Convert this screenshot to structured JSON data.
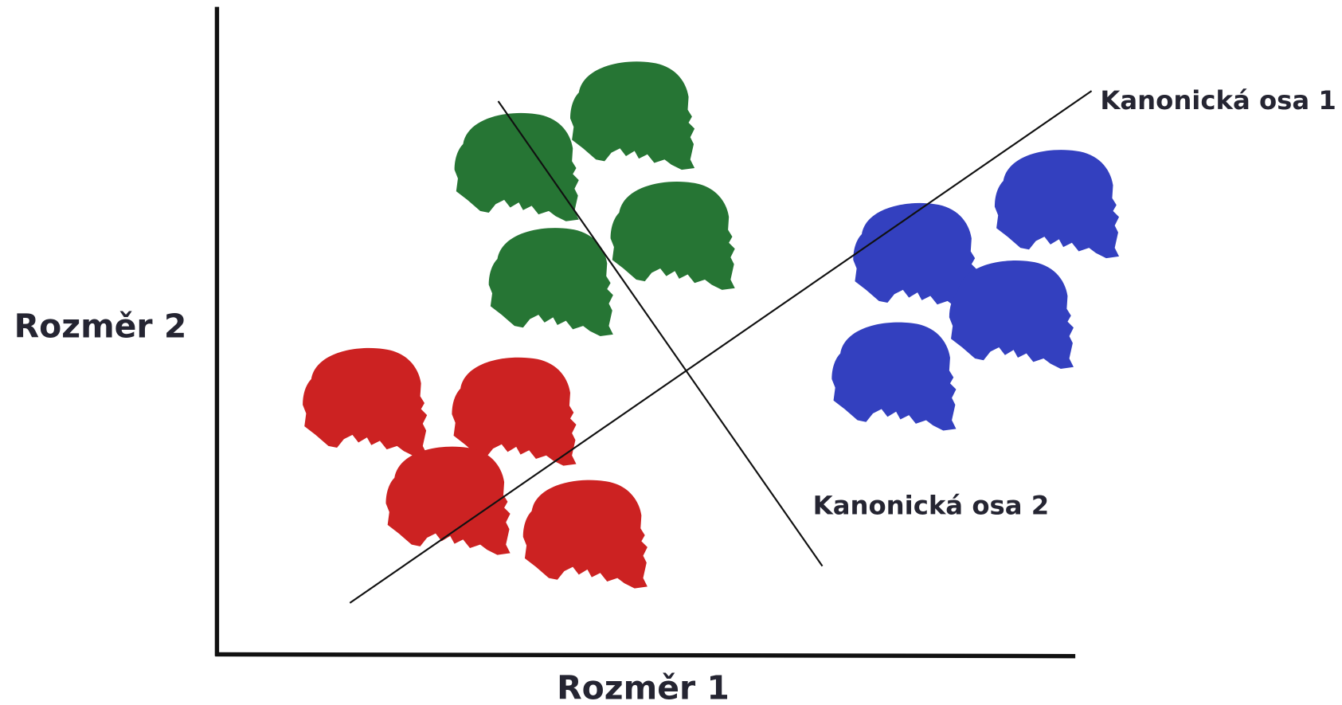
{
  "axes": {
    "x_label": "Rozměr 1",
    "y_label": "Rozměr 2"
  },
  "canonical_axes": {
    "axis_1": "Kanonická osa 1",
    "axis_2": "Kanonická osa 2"
  }
}
